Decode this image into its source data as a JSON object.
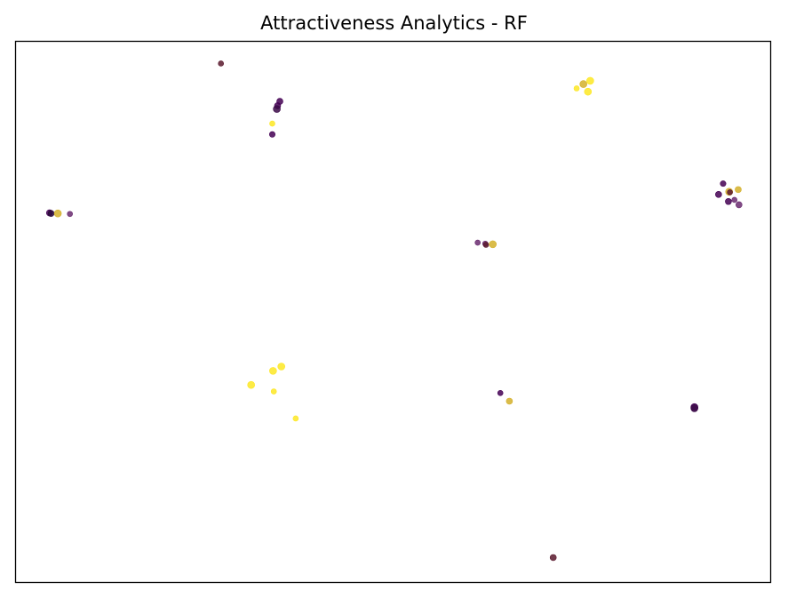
{
  "chart_data": {
    "type": "scatter",
    "title": "Attractiveness Analytics - RF",
    "xlabel": "",
    "ylabel": "",
    "xlim": [
      0,
      100
    ],
    "ylim": [
      0,
      100
    ],
    "x_ticks_shown": false,
    "y_ticks_shown": false,
    "grid": false,
    "legend": "none",
    "colormap": "viridis",
    "colors": {
      "low": "#440154",
      "mid": "#6a2c70",
      "high": "#fde725",
      "dark_red": "#5b1a2e",
      "mustard": "#d4b02a",
      "axes_frame": "#000000",
      "background": "#ffffff"
    },
    "points": [
      {
        "x": 27.2,
        "y": 95.9,
        "color": "#5b1a2e",
        "size": 3
      },
      {
        "x": 35.0,
        "y": 88.9,
        "color": "#440154",
        "size": 3.5
      },
      {
        "x": 34.7,
        "y": 88.1,
        "color": "#440154",
        "size": 3.5
      },
      {
        "x": 34.6,
        "y": 87.5,
        "color": "#3b0a48",
        "size": 4
      },
      {
        "x": 34.0,
        "y": 84.8,
        "color": "#fde725",
        "size": 3
      },
      {
        "x": 34.0,
        "y": 82.8,
        "color": "#440154",
        "size": 3.2
      },
      {
        "x": 75.8,
        "y": 90.7,
        "color": "#fde725",
        "size": 4
      },
      {
        "x": 75.2,
        "y": 92.1,
        "color": "#d4b02a",
        "size": 4
      },
      {
        "x": 76.1,
        "y": 92.7,
        "color": "#fde725",
        "size": 4
      },
      {
        "x": 74.3,
        "y": 91.3,
        "color": "#fde725",
        "size": 3
      },
      {
        "x": 4.5,
        "y": 68.3,
        "color": "#440154",
        "size": 3.5
      },
      {
        "x": 4.7,
        "y": 68.2,
        "color": "#2a0a3a",
        "size": 3.5
      },
      {
        "x": 5.6,
        "y": 68.2,
        "color": "#d4b02a",
        "size": 4
      },
      {
        "x": 7.2,
        "y": 68.1,
        "color": "#6a2c70",
        "size": 3
      },
      {
        "x": 62.2,
        "y": 62.6,
        "color": "#6a2c70",
        "size": 3
      },
      {
        "x": 61.2,
        "y": 62.8,
        "color": "#6a2c70",
        "size": 3
      },
      {
        "x": 63.2,
        "y": 62.5,
        "color": "#d4b02a",
        "size": 4
      },
      {
        "x": 62.3,
        "y": 62.4,
        "color": "#5b1a2e",
        "size": 3
      },
      {
        "x": 93.7,
        "y": 73.7,
        "color": "#440154",
        "size": 3.2
      },
      {
        "x": 93.1,
        "y": 71.7,
        "color": "#440154",
        "size": 3.5
      },
      {
        "x": 94.5,
        "y": 72.2,
        "color": "#d4b02a",
        "size": 4
      },
      {
        "x": 95.7,
        "y": 72.6,
        "color": "#d4b02a",
        "size": 3.5
      },
      {
        "x": 94.4,
        "y": 70.4,
        "color": "#440154",
        "size": 3.5
      },
      {
        "x": 95.2,
        "y": 70.7,
        "color": "#6a2c70",
        "size": 3
      },
      {
        "x": 95.8,
        "y": 69.8,
        "color": "#6a2c70",
        "size": 3.5
      },
      {
        "x": 94.6,
        "y": 72.1,
        "color": "#5b1a2e",
        "size": 3
      },
      {
        "x": 35.2,
        "y": 39.9,
        "color": "#fde725",
        "size": 4
      },
      {
        "x": 34.1,
        "y": 39.1,
        "color": "#fde725",
        "size": 4
      },
      {
        "x": 31.2,
        "y": 36.5,
        "color": "#fde725",
        "size": 4
      },
      {
        "x": 34.2,
        "y": 35.3,
        "color": "#fde725",
        "size": 3
      },
      {
        "x": 37.1,
        "y": 30.3,
        "color": "#fde725",
        "size": 3
      },
      {
        "x": 64.2,
        "y": 35.0,
        "color": "#440154",
        "size": 3
      },
      {
        "x": 65.4,
        "y": 33.5,
        "color": "#d4b02a",
        "size": 3.5
      },
      {
        "x": 89.9,
        "y": 32.4,
        "color": "#440154",
        "size": 4
      },
      {
        "x": 89.9,
        "y": 32.2,
        "color": "#3b0a48",
        "size": 4
      },
      {
        "x": 71.2,
        "y": 4.6,
        "color": "#5b1a2e",
        "size": 3.5
      }
    ]
  }
}
